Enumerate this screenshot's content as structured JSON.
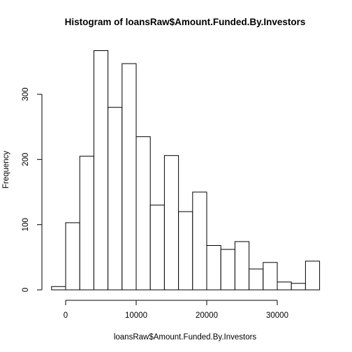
{
  "chart_data": {
    "type": "bar",
    "title": "Histogram of loansRaw$Amount.Funded.By.Investors",
    "xlabel": "loansRaw$Amount.Funded.By.Investors",
    "ylabel": "Frequency",
    "bin_edges": [
      -2000,
      0,
      2000,
      4000,
      6000,
      8000,
      10000,
      12000,
      14000,
      16000,
      18000,
      20000,
      22000,
      24000,
      26000,
      28000,
      30000,
      32000,
      34000,
      36000
    ],
    "values": [
      5,
      103,
      205,
      367,
      280,
      347,
      235,
      130,
      206,
      120,
      150,
      68,
      62,
      74,
      32,
      42,
      12,
      10,
      44
    ],
    "xlim": [
      -2000,
      36000
    ],
    "ylim": [
      0,
      367
    ],
    "x_ticks": [
      0,
      10000,
      20000,
      30000
    ],
    "y_ticks": [
      0,
      100,
      200,
      300
    ],
    "x_tick_labels": [
      "0",
      "10000",
      "20000",
      "30000"
    ],
    "y_tick_labels": [
      "0",
      "100",
      "200",
      "300"
    ],
    "grid": false,
    "legend": "none"
  }
}
